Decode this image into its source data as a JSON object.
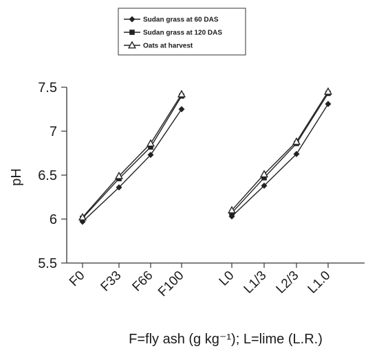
{
  "chart_data": {
    "type": "line",
    "ylabel": "pH",
    "xlabel": "F=fly ash (g kg⁻¹); L=lime (L.R.)",
    "ylim": [
      5.5,
      7.5
    ],
    "yticks": [
      "5.5",
      "6",
      "6.5",
      "7",
      "7.5"
    ],
    "legend_position": "top-center",
    "groups": [
      {
        "categories": [
          "F0",
          "F33",
          "F66",
          "F100"
        ]
      },
      {
        "categories": [
          "L0",
          "L1/3",
          "L2/3",
          "L1.0"
        ]
      }
    ],
    "series": [
      {
        "name": "Sudan grass at 60 DAS",
        "marker": "diamond",
        "color": "#222222",
        "values": [
          [
            5.97,
            6.36,
            6.73,
            7.25
          ],
          [
            6.03,
            6.38,
            6.74,
            7.31
          ]
        ]
      },
      {
        "name": "Sudan grass at 120 DAS",
        "marker": "square",
        "color": "#222222",
        "values": [
          [
            6.01,
            6.46,
            6.82,
            7.4
          ],
          [
            6.07,
            6.47,
            6.86,
            7.43
          ]
        ]
      },
      {
        "name": "Oats at harvest",
        "marker": "triangle",
        "color": "#222222",
        "values": [
          [
            6.02,
            6.49,
            6.86,
            7.42
          ],
          [
            6.1,
            6.51,
            6.88,
            7.45
          ]
        ]
      }
    ]
  }
}
